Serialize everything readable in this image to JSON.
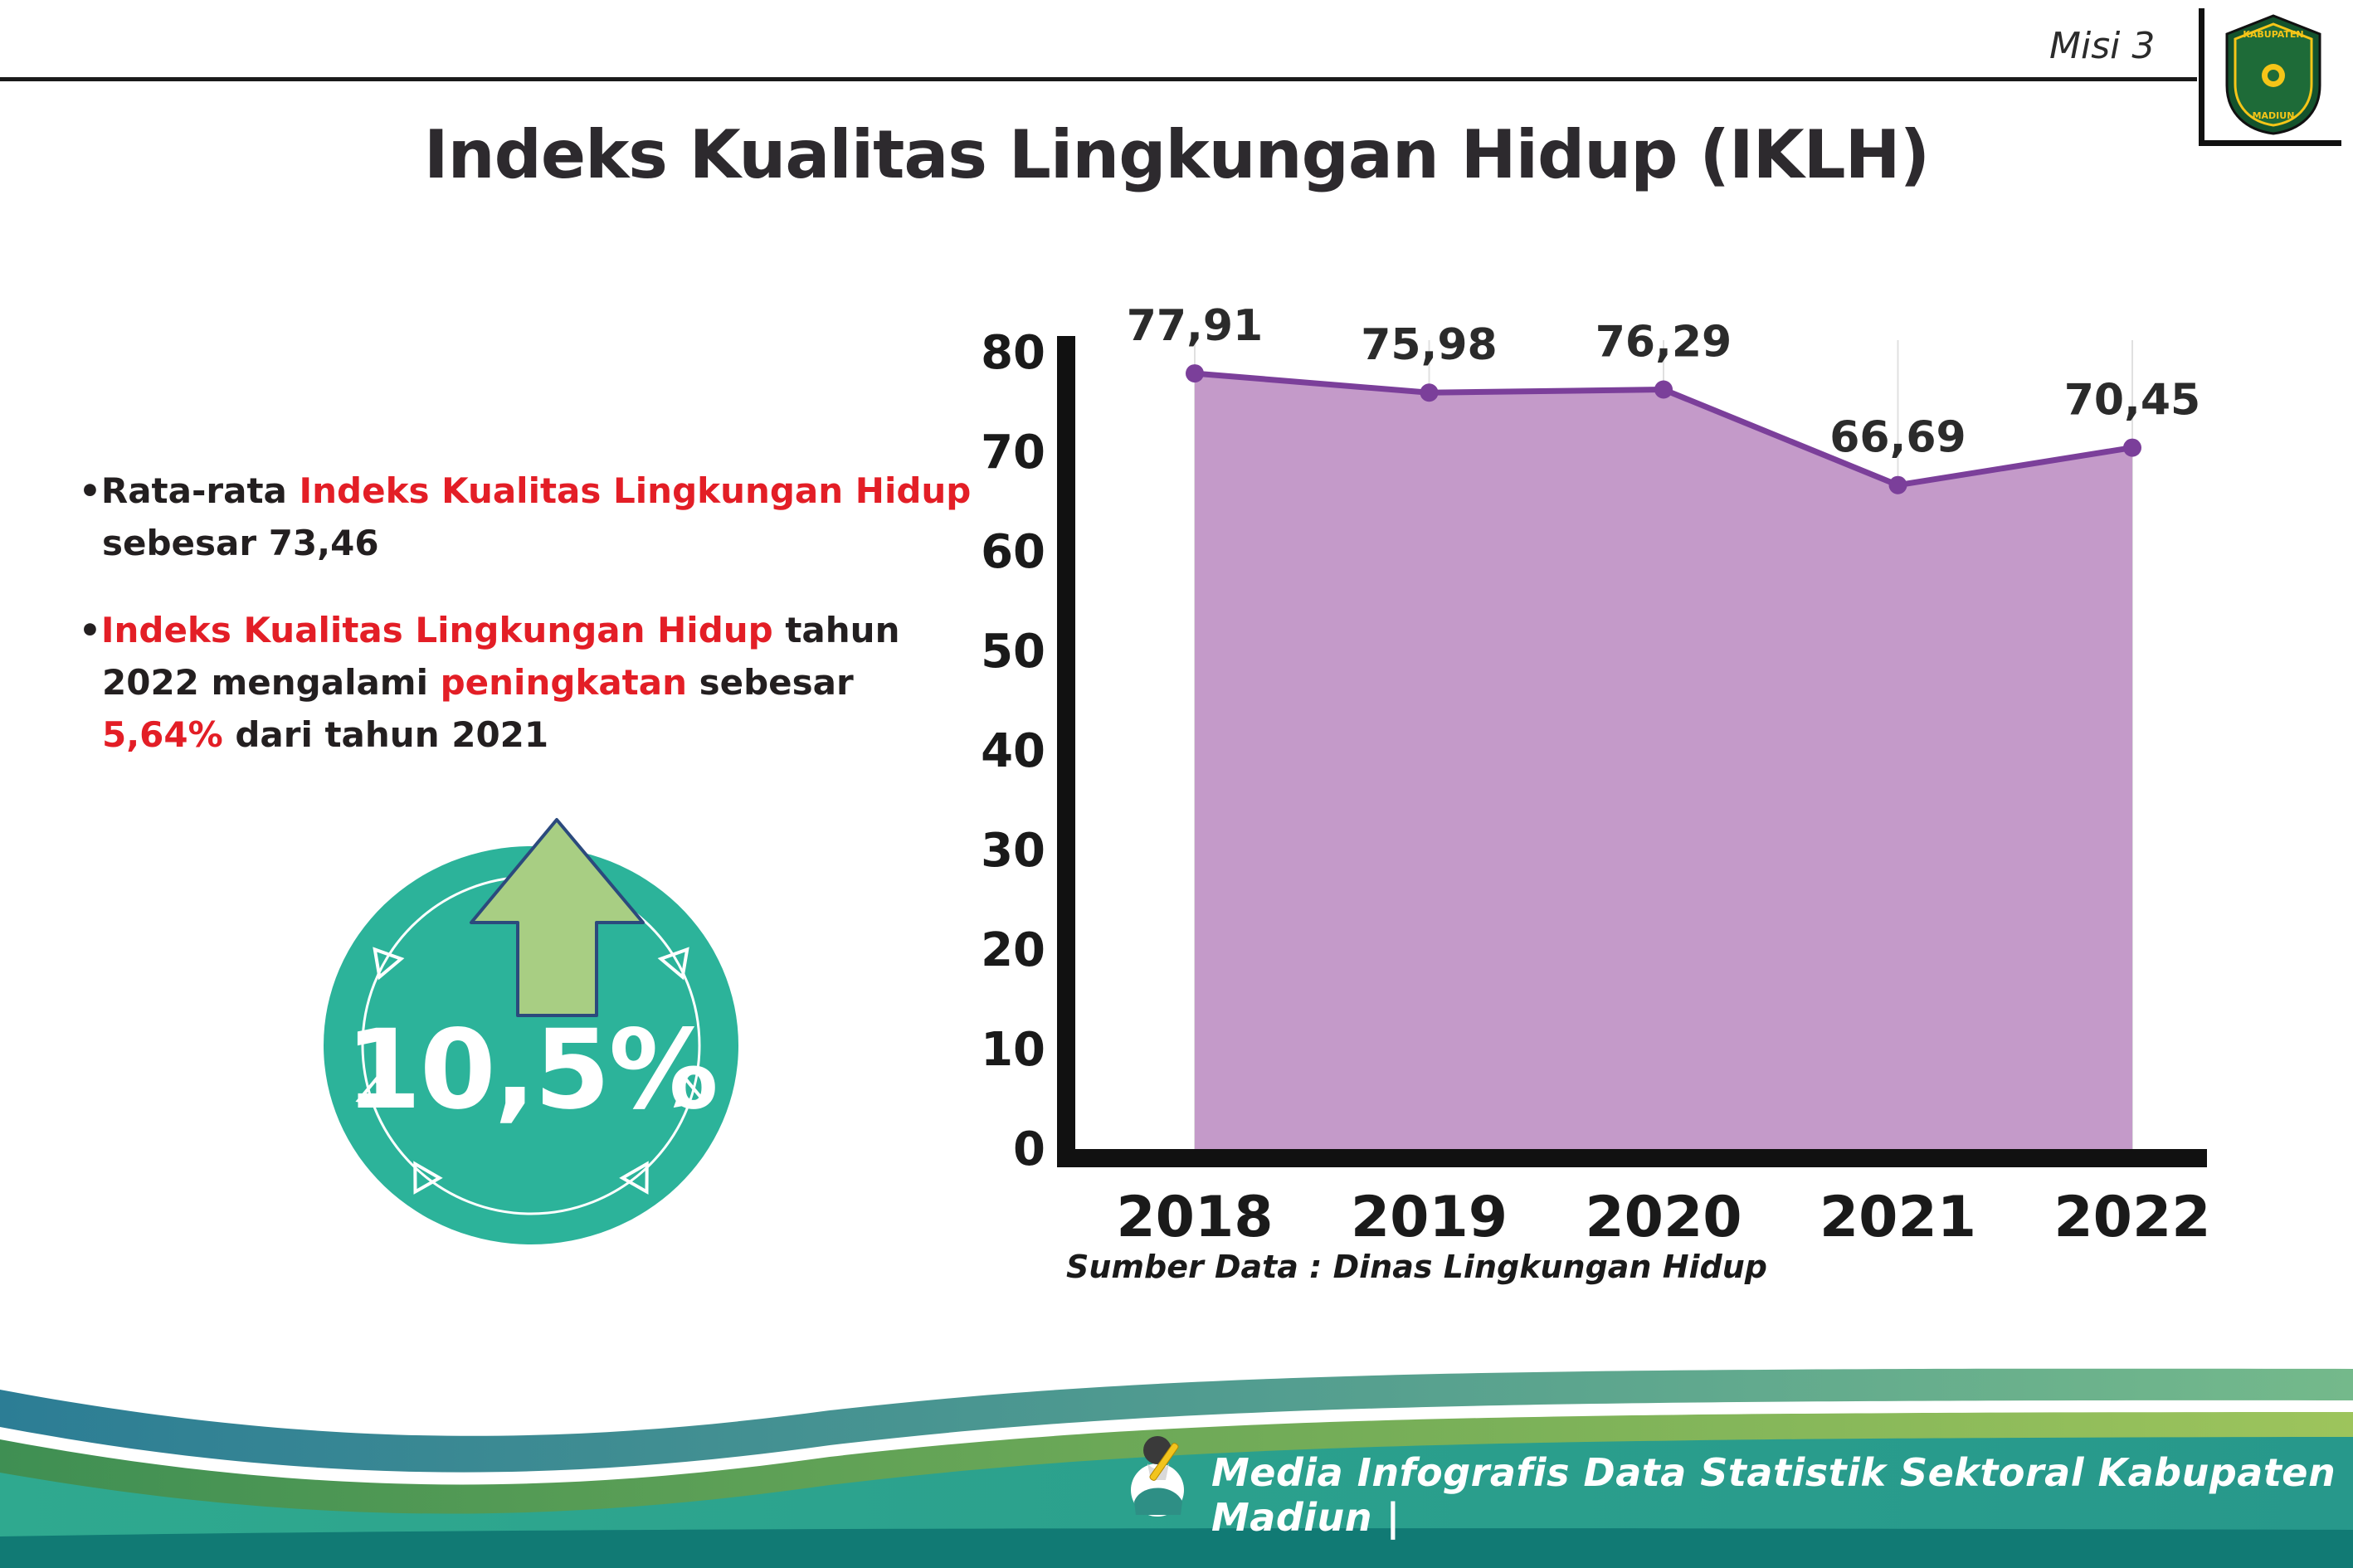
{
  "header": {
    "misi_label": "Misi 3",
    "title": "Indeks Kualitas Lingkungan Hidup (IKLH)",
    "logo": {
      "top_text": "KABUPATEN",
      "bottom_text": "MADIUN"
    }
  },
  "bullets": [
    {
      "segments": [
        {
          "t": "Rata-rata ",
          "c": "dark"
        },
        {
          "t": "Indeks Kualitas Lingkungan Hidup",
          "c": "red"
        },
        {
          "t": " sebesar 73,46",
          "c": "dark"
        }
      ]
    },
    {
      "segments": [
        {
          "t": "Indeks Kualitas Lingkungan Hidup",
          "c": "red"
        },
        {
          "t": " tahun 2022 mengalami ",
          "c": "dark"
        },
        {
          "t": "peningkatan",
          "c": "red"
        },
        {
          "t": " sebesar ",
          "c": "dark"
        },
        {
          "t": "5,64%",
          "c": "red"
        },
        {
          "t": " dari tahun 2021",
          "c": "dark"
        }
      ]
    }
  ],
  "badge": {
    "value": "10,5%",
    "circle_color": "#2cb39a",
    "arrow_color": "#a8ce83"
  },
  "chart_data": {
    "type": "area",
    "categories": [
      "2018",
      "2019",
      "2020",
      "2021",
      "2022"
    ],
    "values": [
      77.91,
      75.98,
      76.29,
      66.69,
      70.45
    ],
    "value_labels": [
      "77,91",
      "75,98",
      "76,29",
      "66,69",
      "70,45"
    ],
    "title": "",
    "xlabel": "",
    "ylabel": "",
    "ylim": [
      0,
      80
    ],
    "ytick_step": 10,
    "grid": "vertical-light",
    "legend": "none",
    "line_color": "#7b3f9a",
    "fill_color": "#c49ac9",
    "point_color": "#7b3f9a",
    "axis_color": "#111111",
    "label_color": "#1a1a1a"
  },
  "source_note": "Sumber Data : Dinas Lingkungan Hidup",
  "footer": {
    "text": "Media Infografis Data Statistik Sektoral Kabupaten Madiun |"
  }
}
